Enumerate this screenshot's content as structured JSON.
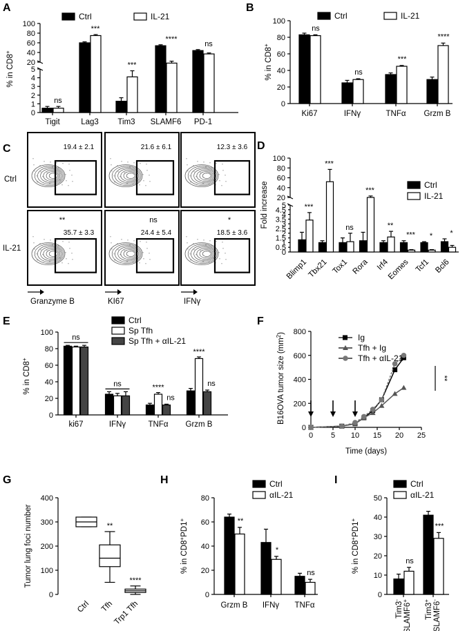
{
  "panels": {
    "A": {
      "label": "A",
      "ylabel": "% in CD8",
      "ylabel_sup": "+",
      "legend": [
        "Ctrl",
        "IL-21"
      ],
      "categories": [
        "Tigit",
        "Lag3",
        "Tim3",
        "SLAMF6",
        "PD-1"
      ],
      "ctrl": [
        0.5,
        60,
        1.3,
        54,
        44
      ],
      "il21": [
        0.5,
        75,
        4.1,
        18,
        37
      ],
      "ctrl_err": [
        0.2,
        2,
        0.4,
        2,
        2
      ],
      "il21_err": [
        0.2,
        2,
        0.7,
        4,
        2
      ],
      "sig": [
        "ns",
        "***",
        "***",
        "****",
        "ns"
      ],
      "upper_ticks": [
        "20",
        "40",
        "60",
        "80",
        "100"
      ],
      "lower_ticks": [
        "0",
        "1",
        "2",
        "3",
        "4",
        "5"
      ]
    },
    "B": {
      "label": "B",
      "ylabel": "% in CD8",
      "ylabel_sup": "+",
      "legend": [
        "Ctrl",
        "IL-21"
      ],
      "categories": [
        "Ki67",
        "IFNγ",
        "TNFα",
        "Grzm B"
      ],
      "ctrl": [
        83,
        25,
        35,
        29
      ],
      "il21": [
        82,
        29,
        45,
        70
      ],
      "ctrl_err": [
        2,
        3,
        2,
        3
      ],
      "il21_err": [
        1,
        1,
        1,
        3
      ],
      "sig": [
        "ns",
        "ns",
        "***",
        "****"
      ],
      "ylim": [
        0,
        100
      ],
      "ticks": [
        "0",
        "20",
        "40",
        "60",
        "80",
        "100"
      ]
    },
    "C": {
      "label": "C",
      "rows": [
        "Ctrl",
        "IL-21"
      ],
      "ctrl_values": [
        "19.4 ± 2.1",
        "21.6 ± 6.1",
        "12.3 ± 3.6"
      ],
      "il21_values": [
        "35.7 ± 3.3",
        "24.4 ± 5.4",
        "18.5 ± 3.6"
      ],
      "il21_sig": [
        "**",
        "ns",
        "*"
      ],
      "xlabels": [
        "Granzyme B",
        "KI67",
        "IFNγ"
      ]
    },
    "D": {
      "label": "D",
      "ylabel": "Fold increase",
      "legend": [
        "Ctrl",
        "IL-21"
      ],
      "categories": [
        "Blimp1",
        "Tbx21",
        "Tox1",
        "Rora",
        "Irf4",
        "Eomes",
        "Tcf1",
        "Bcl6"
      ],
      "ctrl": [
        1.3,
        1.0,
        1.0,
        1.2,
        1.0,
        1.0,
        1.0,
        1.1
      ],
      "il21": [
        3.4,
        52,
        1.1,
        20,
        1.6,
        0.2,
        0.2,
        0.5
      ],
      "ctrl_err": [
        0.8,
        0.2,
        0.5,
        0.9,
        0.2,
        0.2,
        0.1,
        0.3
      ],
      "il21_err": [
        0.8,
        25,
        0.9,
        3,
        0.6,
        0.05,
        0.05,
        0.2
      ],
      "sig": [
        "***",
        "***",
        "ns",
        "***",
        "**",
        "***",
        "*",
        "*"
      ],
      "upper_ticks": [
        "20",
        "40",
        "60",
        "80",
        "100"
      ],
      "lower_ticks": [
        "0",
        "0.5",
        "1",
        "1.5",
        "2",
        "2.5",
        "3",
        "3.5",
        "4",
        "4.5",
        "5"
      ]
    },
    "E": {
      "label": "E",
      "ylabel": "% in CD8",
      "ylabel_sup": "+",
      "legend": [
        "Ctrl",
        "Sp Tfh",
        "Sp Tfh + αIL-21"
      ],
      "categories": [
        "ki67",
        "IFNγ",
        "TNFα",
        "Grzm B"
      ],
      "ctrl": [
        83,
        25,
        12,
        29
      ],
      "sptfh": [
        82,
        23,
        25,
        68
      ],
      "aIL21": [
        82,
        23,
        12,
        28
      ],
      "ctrl_err": [
        1,
        3,
        2,
        3
      ],
      "sptfh_err": [
        1,
        3,
        2,
        2
      ],
      "aIL21_err": [
        2,
        5,
        1,
        2
      ],
      "sig": [
        "ns",
        "ns",
        "****",
        "****"
      ],
      "sig2": [
        "",
        "",
        "ns",
        "ns"
      ],
      "ylim": [
        0,
        100
      ],
      "ticks": [
        "0",
        "20",
        "40",
        "60",
        "80",
        "100"
      ]
    },
    "F": {
      "label": "F",
      "ylabel": "B16OVA tumor size (mm",
      "ylabel_sup": "2",
      "ylabel_end": ")",
      "xlabel": "Time (days)",
      "legend": [
        "Ig",
        "Tfh + Ig",
        "Tfh + αIL-21"
      ],
      "x": [
        0,
        7,
        10,
        12,
        14,
        16,
        19,
        21
      ],
      "ig": [
        0,
        10,
        30,
        80,
        140,
        230,
        480,
        580
      ],
      "tfh_ig": [
        0,
        10,
        30,
        80,
        120,
        180,
        280,
        330
      ],
      "tfh_aIL21": [
        0,
        10,
        40,
        90,
        150,
        230,
        530,
        600
      ],
      "arrows_x": [
        0,
        5,
        10
      ],
      "sig": "**",
      "xlim": [
        0,
        25
      ],
      "ylim": [
        0,
        800
      ],
      "xticks": [
        "0",
        "5",
        "10",
        "15",
        "20",
        "25"
      ],
      "yticks": [
        "0",
        "200",
        "400",
        "600",
        "800"
      ]
    },
    "G": {
      "label": "G",
      "ylabel": "Tumor lung foci number",
      "categories": [
        "Ctrl",
        "Tfh",
        "Trp1 Tfh"
      ],
      "boxes": [
        {
          "min": 280,
          "q1": 280,
          "median": 300,
          "q3": 320,
          "max": 320
        },
        {
          "min": 50,
          "q1": 115,
          "median": 150,
          "q3": 205,
          "max": 260
        },
        {
          "min": 0,
          "q1": 8,
          "median": 15,
          "q3": 22,
          "max": 35
        }
      ],
      "sig": [
        "",
        "**",
        "****"
      ],
      "ylim": [
        0,
        400
      ],
      "ticks": [
        "0",
        "100",
        "200",
        "300",
        "400"
      ]
    },
    "H": {
      "label": "H",
      "ylabel": "% in CD8",
      "ylabel_sup": "+",
      "ylabel_mid": "PD1",
      "ylabel_sup2": "+",
      "legend": [
        "Ctrl",
        "αIL-21"
      ],
      "categories": [
        "Grzm B",
        "IFNγ",
        "TNFα"
      ],
      "ctrl": [
        64,
        43,
        15
      ],
      "aIL21": [
        50,
        29,
        10
      ],
      "ctrl_err": [
        2.5,
        11,
        2.5
      ],
      "aIL21_err": [
        5.5,
        2.5,
        2.5
      ],
      "sig": [
        "**",
        "*",
        "ns"
      ],
      "ylim": [
        0,
        80
      ],
      "ticks": [
        "0",
        "20",
        "40",
        "60",
        "80"
      ]
    },
    "I": {
      "label": "I",
      "ylabel": "% in CD8",
      "ylabel_sup": "+",
      "ylabel_mid": "PD1",
      "ylabel_sup2": "+",
      "legend": [
        "Ctrl",
        "αIL-21"
      ],
      "categories": [
        {
          "a": "Tim3",
          "a_sup": "-",
          "b": "SLAMF6",
          "b_sup": "+"
        },
        {
          "a": "Tim3",
          "a_sup": "+",
          "b": "SLAMF6",
          "b_sup": "-"
        }
      ],
      "ctrl": [
        8,
        41
      ],
      "aIL21": [
        12,
        29
      ],
      "ctrl_err": [
        2.5,
        2
      ],
      "aIL21_err": [
        2,
        3
      ],
      "sig": [
        "ns",
        "***"
      ],
      "ylim": [
        0,
        50
      ],
      "ticks": [
        "0",
        "10",
        "20",
        "30",
        "40",
        "50"
      ]
    }
  }
}
